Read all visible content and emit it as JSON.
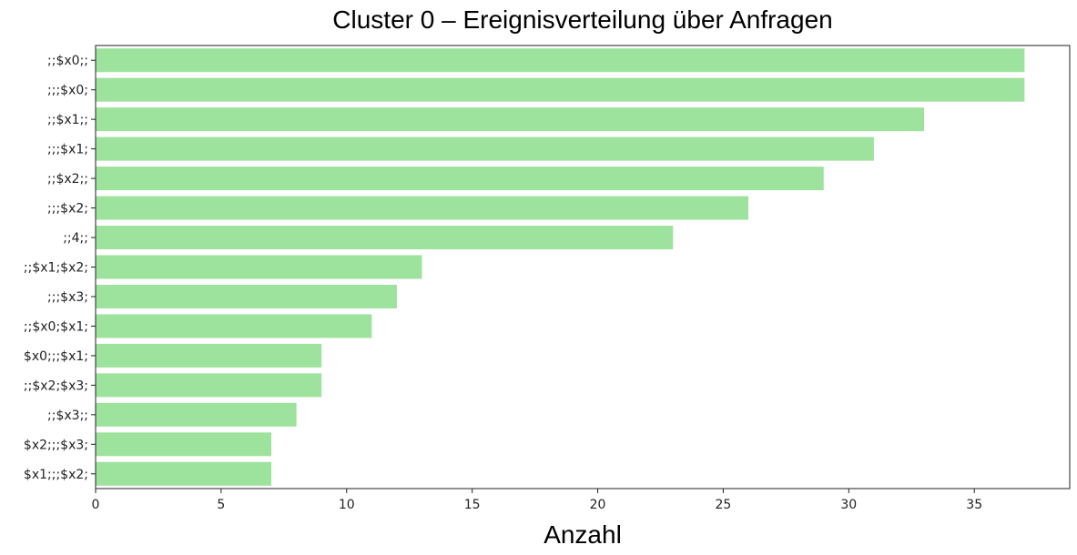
{
  "chart_data": {
    "type": "bar",
    "orientation": "horizontal",
    "title": "Cluster 0 – Ereignisverteilung über Anfragen",
    "xlabel": "Anzahl",
    "ylabel": "",
    "categories": [
      ";;$x0;;",
      ";;;$x0;",
      ";;$x1;;",
      ";;;$x1;",
      ";;$x2;;",
      ";;;$x2;",
      ";;4;;",
      ";;$x1;$x2;",
      ";;;$x3;",
      ";;$x0;$x1;",
      "$x0;;;$x1;",
      ";;$x2;$x3;",
      ";;$x3;;",
      "$x2;;;$x3;",
      "$x1;;;$x2;"
    ],
    "values": [
      37,
      37,
      33,
      31,
      29,
      26,
      23,
      13,
      12,
      11,
      9,
      9,
      8,
      7,
      7
    ],
    "xlim": [
      0,
      38.8
    ],
    "xticks": [
      0,
      5,
      10,
      15,
      20,
      25,
      30,
      35
    ],
    "bar_color": "#9de29d",
    "grid": false
  }
}
